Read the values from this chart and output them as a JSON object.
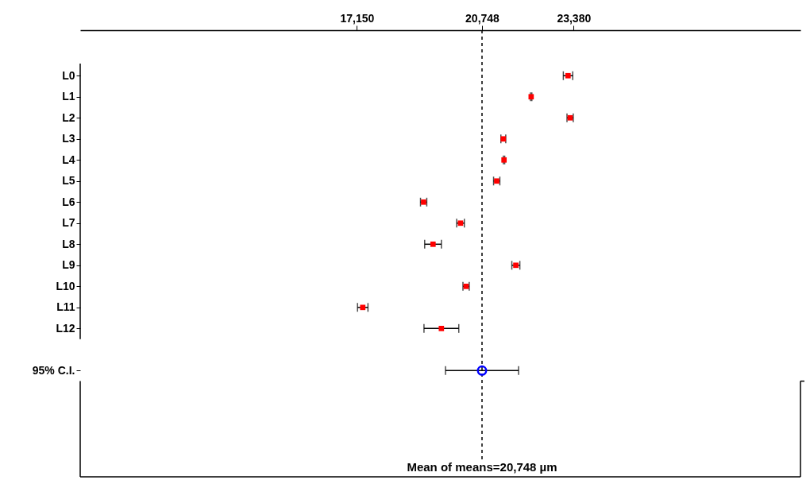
{
  "chart_data": {
    "type": "scatter",
    "orientation": "horizontal",
    "categories": [
      "L0",
      "L1",
      "L2",
      "L3",
      "L4",
      "L5",
      "L6",
      "L7",
      "L8",
      "L9",
      "L10",
      "L11",
      "L12",
      "95% C.I."
    ],
    "series": [
      {
        "color": "#ff0000",
        "marker": "square",
        "values": [
          23220,
          22160,
          23280,
          21360,
          21380,
          21170,
          19070,
          20130,
          19340,
          21720,
          20290,
          17320,
          19580,
          null
        ],
        "errors": [
          135,
          20,
          90,
          70,
          20,
          90,
          90,
          110,
          240,
          115,
          90,
          150,
          500,
          null
        ]
      },
      {
        "color": "#0000ff",
        "marker": "circle",
        "values": [
          null,
          null,
          null,
          null,
          null,
          null,
          null,
          null,
          null,
          null,
          null,
          null,
          null,
          20748
        ],
        "errors": [
          null,
          null,
          null,
          null,
          null,
          null,
          null,
          null,
          null,
          null,
          null,
          null,
          null,
          1050
        ]
      }
    ],
    "xlim": [
      9200,
      29900
    ],
    "xticks": [
      {
        "value": 17150,
        "label": "17,150"
      },
      {
        "value": 20748,
        "label": "20,748"
      },
      {
        "value": 23380,
        "label": "23,380"
      }
    ],
    "ref_lines": [
      {
        "axis": "x",
        "value": 20748,
        "label": "Mean of means=20,748 µm",
        "line_style": "dashed",
        "color": "#000000"
      }
    ],
    "grid": false,
    "legend": false
  }
}
